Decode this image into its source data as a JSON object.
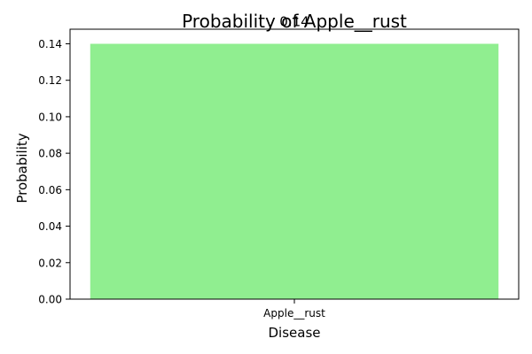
{
  "chart_data": {
    "type": "bar",
    "title": "Probability of Apple__rust",
    "xlabel": "Disease",
    "ylabel": "Probability",
    "categories": [
      "Apple__rust"
    ],
    "values": [
      0.14
    ],
    "data_labels": [
      "0.14"
    ],
    "ylim": [
      0,
      0.148
    ],
    "yticks": [
      0.0,
      0.02,
      0.04,
      0.06,
      0.08,
      0.1,
      0.12,
      0.14
    ],
    "ytick_labels": [
      "0.00",
      "0.02",
      "0.04",
      "0.06",
      "0.08",
      "0.10",
      "0.12",
      "0.14"
    ],
    "bar_color": "#90ee90",
    "grid": false,
    "legend": "none"
  }
}
